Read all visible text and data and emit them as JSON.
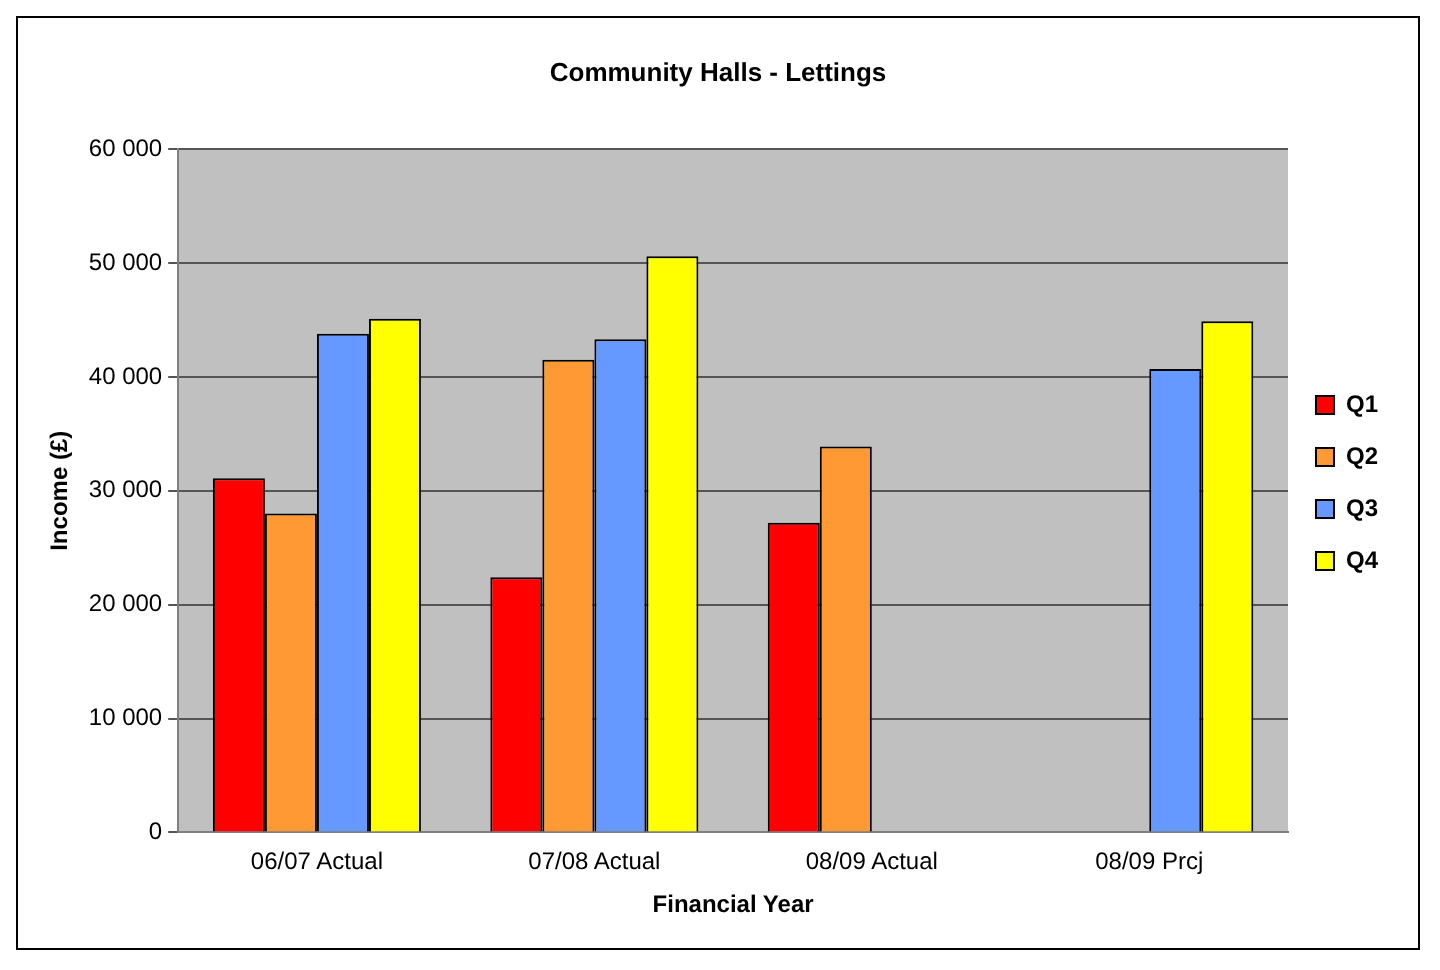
{
  "chart_data": {
    "type": "bar",
    "title": "Community Halls - Lettings",
    "xlabel": "Financial Year",
    "ylabel": "Income (£)",
    "categories": [
      "06/07 Actual",
      "07/08 Actual",
      "08/09 Actual",
      "08/09 Prcj"
    ],
    "series": [
      {
        "name": "Q1",
        "color": "#ff0000",
        "values": [
          31100,
          22400,
          27200,
          null
        ]
      },
      {
        "name": "Q2",
        "color": "#ff9933",
        "values": [
          28000,
          41500,
          33900,
          null
        ]
      },
      {
        "name": "Q3",
        "color": "#6699ff",
        "values": [
          43800,
          43300,
          null,
          40700
        ]
      },
      {
        "name": "Q4",
        "color": "#ffff00",
        "values": [
          45100,
          50600,
          null,
          44900
        ]
      }
    ],
    "ylim": [
      0,
      60000
    ],
    "yticks": [
      0,
      10000,
      20000,
      30000,
      40000,
      50000,
      60000
    ],
    "grid": "y",
    "legend": "right"
  }
}
